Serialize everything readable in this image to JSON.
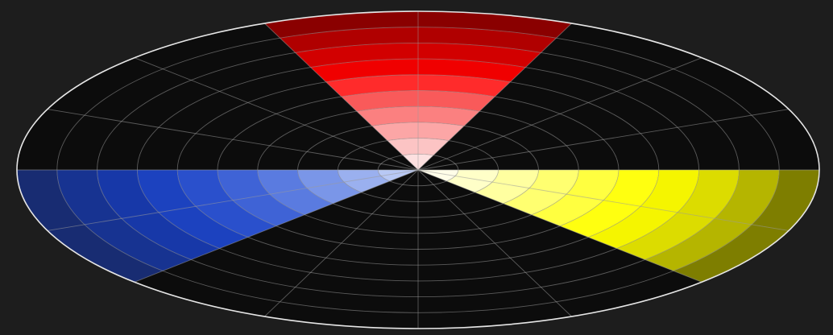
{
  "wheel": {
    "background": "#1d1d1d",
    "disc_fill": "#0c0c0c",
    "grid_color": "#9a9a9a",
    "rim_color": "#e6e6e6",
    "ring_count": 10,
    "spoke_count": 16,
    "wedges": [
      {
        "name": "red",
        "center_deg": 90,
        "colors": [
          "#fde0e0",
          "#fcc4c4",
          "#fca6a6",
          "#fb8080",
          "#f95a5a",
          "#ff2b2b",
          "#f00000",
          "#d20000",
          "#b00000",
          "#8a0000"
        ]
      },
      {
        "name": "yellow",
        "center_deg": -22.5,
        "colors": [
          "#fffde8",
          "#ffffc8",
          "#ffffa0",
          "#ffff70",
          "#ffff40",
          "#ffff10",
          "#f5f500",
          "#dcdc00",
          "#b5b500",
          "#7e7e00"
        ]
      },
      {
        "name": "blue",
        "center_deg": 202.5,
        "colors": [
          "#b8c8f5",
          "#9ab0ef",
          "#7a96e8",
          "#5a7be0",
          "#3f63d6",
          "#2a50cc",
          "#1c42bf",
          "#1738a8",
          "#173391",
          "#182c72"
        ]
      }
    ]
  }
}
